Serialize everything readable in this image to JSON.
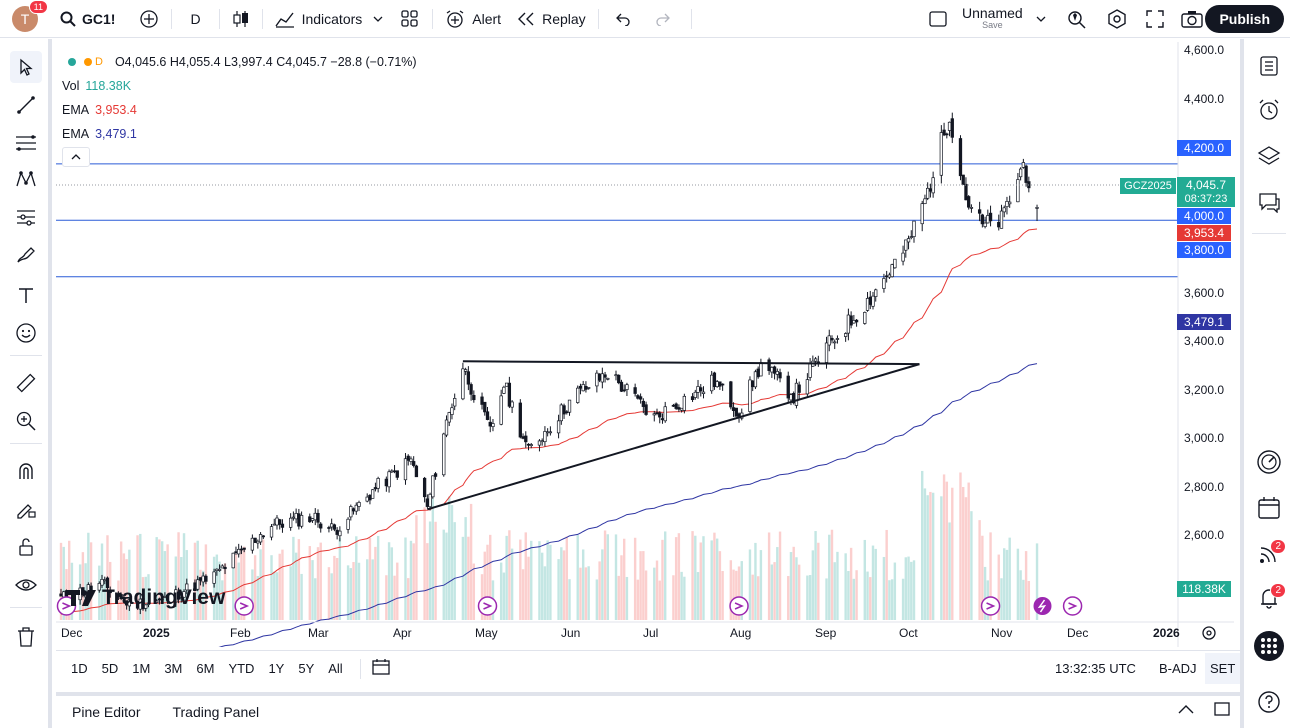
{
  "topbar": {
    "avatar_letter": "T",
    "avatar_badge": "11",
    "symbol": "GC1!",
    "interval": "D",
    "indicators_label": "Indicators",
    "alert_label": "Alert",
    "replay_label": "Replay",
    "layout_name": "Unnamed",
    "layout_save": "Save",
    "publish_label": "Publish"
  },
  "legend": {
    "interval": "D",
    "ohlc": "O4,045.6 H4,055.4 L3,997.4 C4,045.7 −28.8 (−0.71%)",
    "vol_label": "Vol",
    "vol_value": "118.38K",
    "ema1_label": "EMA",
    "ema1_value": "3,953.4",
    "ema2_label": "EMA",
    "ema2_value": "3,479.1"
  },
  "price_axis": [
    "4,600.0",
    "4,400.0",
    "3,600.0",
    "3,400.0",
    "3,200.0",
    "3,000.0",
    "2,800.0",
    "2,600.0"
  ],
  "price_labels": {
    "level_4200": "4,200.0",
    "current": "4,045.7",
    "countdown": "08:37:23",
    "symbol_tag": "GCZ2025",
    "level_4000": "4,000.0",
    "ema_fast": "3,953.4",
    "level_3800": "3,800.0",
    "ema_slow": "3,479.1",
    "volume": "118.38K"
  },
  "time_axis": [
    "Dec",
    "2025",
    "Feb",
    "Mar",
    "Apr",
    "May",
    "Jun",
    "Jul",
    "Aug",
    "Sep",
    "Oct",
    "Nov",
    "Dec",
    "2026"
  ],
  "watermark": "TradingView",
  "bottombar": {
    "ranges": [
      "1D",
      "5D",
      "1M",
      "3M",
      "6M",
      "YTD",
      "1Y",
      "5Y",
      "All"
    ],
    "clock": "13:32:35 UTC",
    "adj": "B-ADJ",
    "session": "SET"
  },
  "panel": {
    "pine_editor": "Pine Editor",
    "trading_panel": "Trading Panel"
  },
  "right_badges": {
    "ideas": "2",
    "notifications": "2"
  },
  "colors": {
    "up": "#26a69a",
    "down": "#ef5350",
    "ema_fast": "#e53935",
    "ema_slow": "#2f36a3",
    "hline": "#2a5bd7",
    "accent": "#2962ff",
    "current_bg": "#22ab94"
  },
  "chart_data": {
    "type": "candlestick",
    "symbol": "GC1!",
    "interval": "D",
    "ylim": [
      2540,
      4650
    ],
    "x_range": [
      "2024-11-25",
      "2026-01-05"
    ],
    "horizontal_levels": [
      4200,
      4000,
      3800
    ],
    "ohlc_last": {
      "open": 4045.6,
      "high": 4055.4,
      "low": 3997.4,
      "close": 4045.7
    },
    "close_waypoints": [
      [
        "2024-11-25",
        2660
      ],
      [
        "2024-12-10",
        2710
      ],
      [
        "2024-12-20",
        2640
      ],
      [
        "2025-01-01",
        2650
      ],
      [
        "2025-01-20",
        2740
      ],
      [
        "2025-02-10",
        2920
      ],
      [
        "2025-02-25",
        2950
      ],
      [
        "2025-03-05",
        2900
      ],
      [
        "2025-03-20",
        3050
      ],
      [
        "2025-04-02",
        3150
      ],
      [
        "2025-04-08",
        2980
      ],
      [
        "2025-04-14",
        3250
      ],
      [
        "2025-04-21",
        3480
      ],
      [
        "2025-05-01",
        3250
      ],
      [
        "2025-05-06",
        3420
      ],
      [
        "2025-05-15",
        3180
      ],
      [
        "2025-06-01",
        3380
      ],
      [
        "2025-06-13",
        3460
      ],
      [
        "2025-06-30",
        3300
      ],
      [
        "2025-07-22",
        3430
      ],
      [
        "2025-07-31",
        3320
      ],
      [
        "2025-08-08",
        3490
      ],
      [
        "2025-08-20",
        3380
      ],
      [
        "2025-09-01",
        3550
      ],
      [
        "2025-09-15",
        3700
      ],
      [
        "2025-09-30",
        3900
      ],
      [
        "2025-10-08",
        4100
      ],
      [
        "2025-10-16",
        4380
      ],
      [
        "2025-10-22",
        4080
      ],
      [
        "2025-10-28",
        3980
      ],
      [
        "2025-11-04",
        4000
      ],
      [
        "2025-11-12",
        4200
      ],
      [
        "2025-11-17",
        4045
      ]
    ],
    "trendlines": [
      {
        "from": [
          "2025-04-21",
          3500
        ],
        "to": [
          "2025-10-05",
          3490
        ]
      },
      {
        "from": [
          "2025-04-08",
          2975
        ],
        "to": [
          "2025-10-05",
          3490
        ]
      }
    ]
  }
}
